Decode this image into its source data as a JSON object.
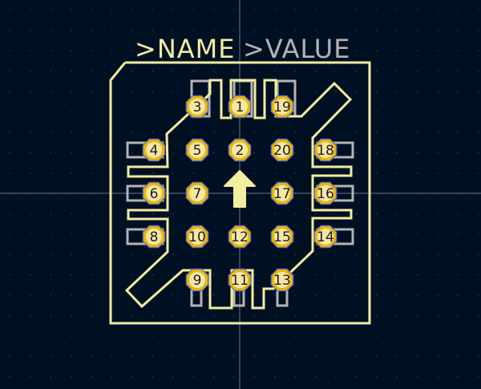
{
  "editor": {
    "colors": {
      "background": "#001023",
      "grid": "#3a4a66",
      "crosshair": "#8a94a6",
      "silkscreen": "#f2eda1",
      "pad": "#e8b900",
      "pad_outline": "#6a6acd",
      "pad_label": "#1d1d1d",
      "courtyard": "#b4b4b4",
      "value_text": "#b4b4b4"
    }
  },
  "footprint": {
    "reference_label": ">NAME",
    "value_label": ">VALUE",
    "orientation_marker": "up-arrow-icon",
    "pads": [
      {
        "label": "3"
      },
      {
        "label": "1"
      },
      {
        "label": "19"
      },
      {
        "label": "4"
      },
      {
        "label": "5"
      },
      {
        "label": "2"
      },
      {
        "label": "20"
      },
      {
        "label": "18"
      },
      {
        "label": "6"
      },
      {
        "label": "7"
      },
      {
        "label": "17"
      },
      {
        "label": "16"
      },
      {
        "label": "8"
      },
      {
        "label": "10"
      },
      {
        "label": "12"
      },
      {
        "label": "15"
      },
      {
        "label": "14"
      },
      {
        "label": "9"
      },
      {
        "label": "11"
      },
      {
        "label": "13"
      }
    ]
  }
}
